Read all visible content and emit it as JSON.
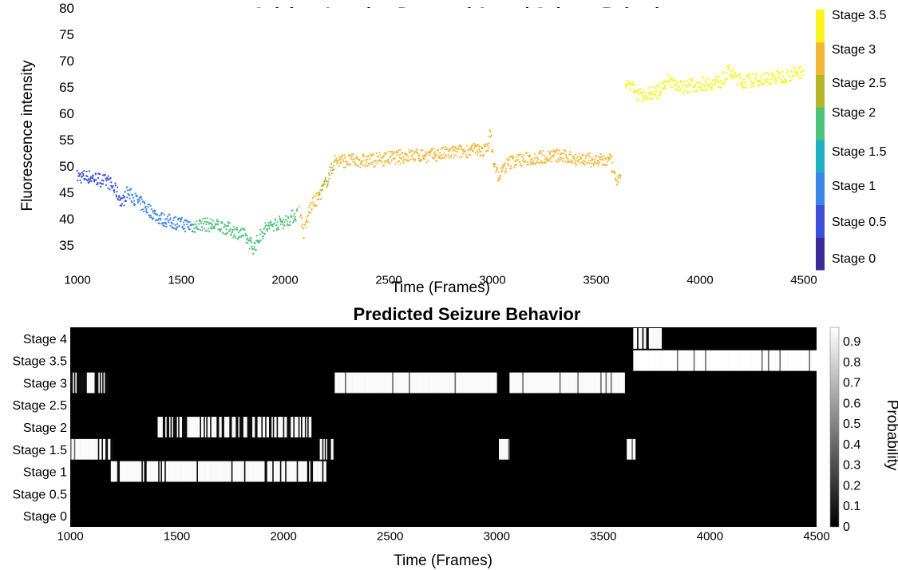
{
  "chart_data": [
    {
      "type": "scatter",
      "title": "Calcium Imaging Data and Actual Seizure Behavior",
      "xlabel": "Time (Frames)",
      "ylabel": "Fluorescence intensity",
      "xlim": [
        1000,
        4500
      ],
      "ylim": [
        30,
        80
      ],
      "xticks": [
        1000,
        1500,
        2000,
        2500,
        3000,
        3500,
        4000,
        4500
      ],
      "yticks": [
        35,
        40,
        45,
        50,
        55,
        60,
        65,
        70,
        75,
        80
      ],
      "grid": false,
      "colorbar": {
        "labels": [
          "Stage 0",
          "Stage 0.5",
          "Stage 1",
          "Stage 1.5",
          "Stage 2",
          "Stage 2.5",
          "Stage 3",
          "Stage 3.5"
        ],
        "colors": [
          "#3b2a98",
          "#3d4fd8",
          "#3a87e8",
          "#1fb0c4",
          "#4cc27a",
          "#b5b52a",
          "#f2b735",
          "#f9f51c"
        ]
      },
      "series": [
        {
          "stage": 0.5,
          "segments": [
            [
              1000,
              48
            ],
            [
              1050,
              48
            ],
            [
              1100,
              47.5
            ],
            [
              1150,
              47
            ],
            [
              1190,
              45
            ],
            [
              1215,
              43
            ],
            [
              1240,
              45
            ]
          ]
        },
        {
          "stage": 1,
          "segments": [
            [
              1240,
              45
            ],
            [
              1300,
              43
            ],
            [
              1350,
              41.5
            ],
            [
              1400,
              40
            ],
            [
              1450,
              39.5
            ],
            [
              1500,
              39
            ],
            [
              1560,
              38.5
            ]
          ]
        },
        {
          "stage": 2,
          "segments": [
            [
              1560,
              38.5
            ],
            [
              1600,
              39
            ],
            [
              1700,
              38.5
            ],
            [
              1800,
              37
            ],
            [
              1850,
              34.5
            ],
            [
              1900,
              38
            ],
            [
              1950,
              39
            ],
            [
              2000,
              39.5
            ],
            [
              2060,
              41
            ]
          ]
        },
        {
          "stage": 3,
          "segments": [
            [
              2070,
              42
            ],
            [
              2090,
              37
            ],
            [
              2120,
              42
            ],
            [
              2160,
              44
            ]
          ]
        },
        {
          "stage": 2.5,
          "segments": [
            [
              2160,
              44
            ],
            [
              2200,
              47
            ],
            [
              2240,
              51
            ]
          ]
        },
        {
          "stage": 3,
          "segments": [
            [
              2240,
              51
            ],
            [
              2300,
              51
            ],
            [
              2400,
              51
            ],
            [
              2500,
              51.5
            ],
            [
              2600,
              52
            ],
            [
              2700,
              52
            ],
            [
              2800,
              52.5
            ],
            [
              2900,
              53
            ],
            [
              2970,
              53
            ],
            [
              2990,
              56
            ],
            [
              3010,
              50
            ],
            [
              3030,
              48
            ],
            [
              3060,
              50
            ],
            [
              3100,
              51
            ],
            [
              3200,
              51.5
            ],
            [
              3300,
              52
            ],
            [
              3400,
              51.5
            ],
            [
              3500,
              51
            ],
            [
              3570,
              51
            ],
            [
              3590,
              47.5
            ],
            [
              3620,
              47
            ]
          ]
        },
        {
          "stage": 3.5,
          "segments": [
            [
              3640,
              66
            ],
            [
              3670,
              65
            ],
            [
              3700,
              63.5
            ],
            [
              3800,
              64
            ],
            [
              3850,
              66.5
            ],
            [
              3900,
              65
            ],
            [
              4000,
              65.5
            ],
            [
              4100,
              66
            ],
            [
              4140,
              68
            ],
            [
              4200,
              66
            ],
            [
              4300,
              66.5
            ],
            [
              4400,
              67
            ],
            [
              4500,
              68
            ]
          ]
        }
      ]
    },
    {
      "type": "heatmap",
      "title": "Predicted Seizure Behavior",
      "xlabel": "Time (Frames)",
      "xlim": [
        1000,
        4500
      ],
      "xticks": [
        1000,
        1500,
        2000,
        2500,
        3000,
        3500,
        4000,
        4500
      ],
      "rows": [
        "Stage 4",
        "Stage 3.5",
        "Stage 3",
        "Stage 2.5",
        "Stage 2",
        "Stage 1.5",
        "Stage 1",
        "Stage 0.5",
        "Stage 0"
      ],
      "colorbar": {
        "label": "Probability",
        "range": [
          0,
          0.97
        ],
        "ticks": [
          0,
          0.1,
          0.2,
          0.3,
          0.4,
          0.5,
          0.6,
          0.7,
          0.8,
          0.9
        ]
      },
      "bands": [
        {
          "row": "Stage 1.5",
          "start": 1000,
          "end": 1130,
          "value": 0.95
        },
        {
          "row": "Stage 1.5",
          "start": 1130,
          "end": 1200,
          "value": 0.4
        },
        {
          "row": "Stage 1.5",
          "start": 2170,
          "end": 2240,
          "value": 0.7
        },
        {
          "row": "Stage 1.5",
          "start": 3010,
          "end": 3060,
          "value": 0.95
        },
        {
          "row": "Stage 1.5",
          "start": 3610,
          "end": 3650,
          "value": 0.95
        },
        {
          "row": "Stage 1",
          "start": 1190,
          "end": 2110,
          "value": 0.88
        },
        {
          "row": "Stage 1",
          "start": 2120,
          "end": 2200,
          "value": 0.8
        },
        {
          "row": "Stage 2",
          "start": 1410,
          "end": 2130,
          "value": 0.6
        },
        {
          "row": "Stage 3",
          "start": 1000,
          "end": 1180,
          "value": 0.3
        },
        {
          "row": "Stage 3",
          "start": 2240,
          "end": 3000,
          "value": 0.95
        },
        {
          "row": "Stage 3",
          "start": 3060,
          "end": 3600,
          "value": 0.95
        },
        {
          "row": "Stage 3.5",
          "start": 3640,
          "end": 4500,
          "value": 0.97
        },
        {
          "row": "Stage 4",
          "start": 3640,
          "end": 3780,
          "value": 0.6
        }
      ]
    }
  ]
}
